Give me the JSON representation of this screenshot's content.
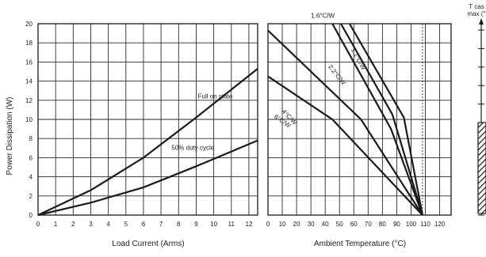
{
  "chart_data": [
    {
      "type": "line",
      "xlabel": "Load Current (Arms)",
      "ylabel": "Power Dissipation (W)",
      "xlim": [
        0,
        12.5
      ],
      "ylim": [
        0,
        20
      ],
      "x_ticks": [
        "0",
        "1",
        "2",
        "3",
        "4",
        "5",
        "6",
        "7",
        "8",
        "9",
        "10",
        "11",
        "12"
      ],
      "y_ticks": [
        "0",
        "2",
        "4",
        "6",
        "8",
        "10",
        "12",
        "14",
        "16",
        "18",
        "20"
      ],
      "grid": true,
      "series": [
        {
          "name": "Full on state",
          "points": [
            [
              0,
              0
            ],
            [
              3,
              2.6
            ],
            [
              6,
              6.0
            ],
            [
              9,
              10.2
            ],
            [
              12.5,
              15.3
            ]
          ]
        },
        {
          "name": "50% duty cycle",
          "points": [
            [
              0,
              0
            ],
            [
              3,
              1.3
            ],
            [
              6,
              2.9
            ],
            [
              9,
              5.1
            ],
            [
              12.5,
              7.8
            ]
          ]
        }
      ]
    },
    {
      "type": "line",
      "xlabel": "Ambient Temperature (°C)",
      "xlim": [
        0,
        128
      ],
      "ylim": [
        0,
        20
      ],
      "x_ticks": [
        "0",
        "10",
        "20",
        "30",
        "40",
        "50",
        "60",
        "70",
        "80",
        "90",
        "100",
        "110",
        "120"
      ],
      "grid": true,
      "annotations": [
        "1.6°C/W",
        "1.1°C/W",
        "2.2°C/W",
        "4°C/W",
        "6°C/W"
      ],
      "series": [
        {
          "name": "1.1°C/W",
          "points": [
            [
              57,
              20
            ],
            [
              95,
              10.2
            ],
            [
              108,
              0
            ]
          ]
        },
        {
          "name": "1.6°C/W",
          "points": [
            [
              51,
              20
            ],
            [
              87,
              10.5
            ],
            [
              108,
              0
            ]
          ]
        },
        {
          "name": "2.2°C/W",
          "points": [
            [
              45,
              20
            ],
            [
              86,
              9.0
            ],
            [
              108,
              0
            ]
          ]
        },
        {
          "name": "4°C/W",
          "points": [
            [
              0,
              19.3
            ],
            [
              65,
              10.0
            ],
            [
              108,
              0
            ]
          ]
        },
        {
          "name": "6°C/W",
          "points": [
            [
              0,
              14.5
            ],
            [
              45,
              10.0
            ],
            [
              108,
              0
            ]
          ]
        }
      ]
    },
    {
      "type": "other",
      "title_lines": [
        "T cas",
        "max (°"
      ]
    }
  ]
}
